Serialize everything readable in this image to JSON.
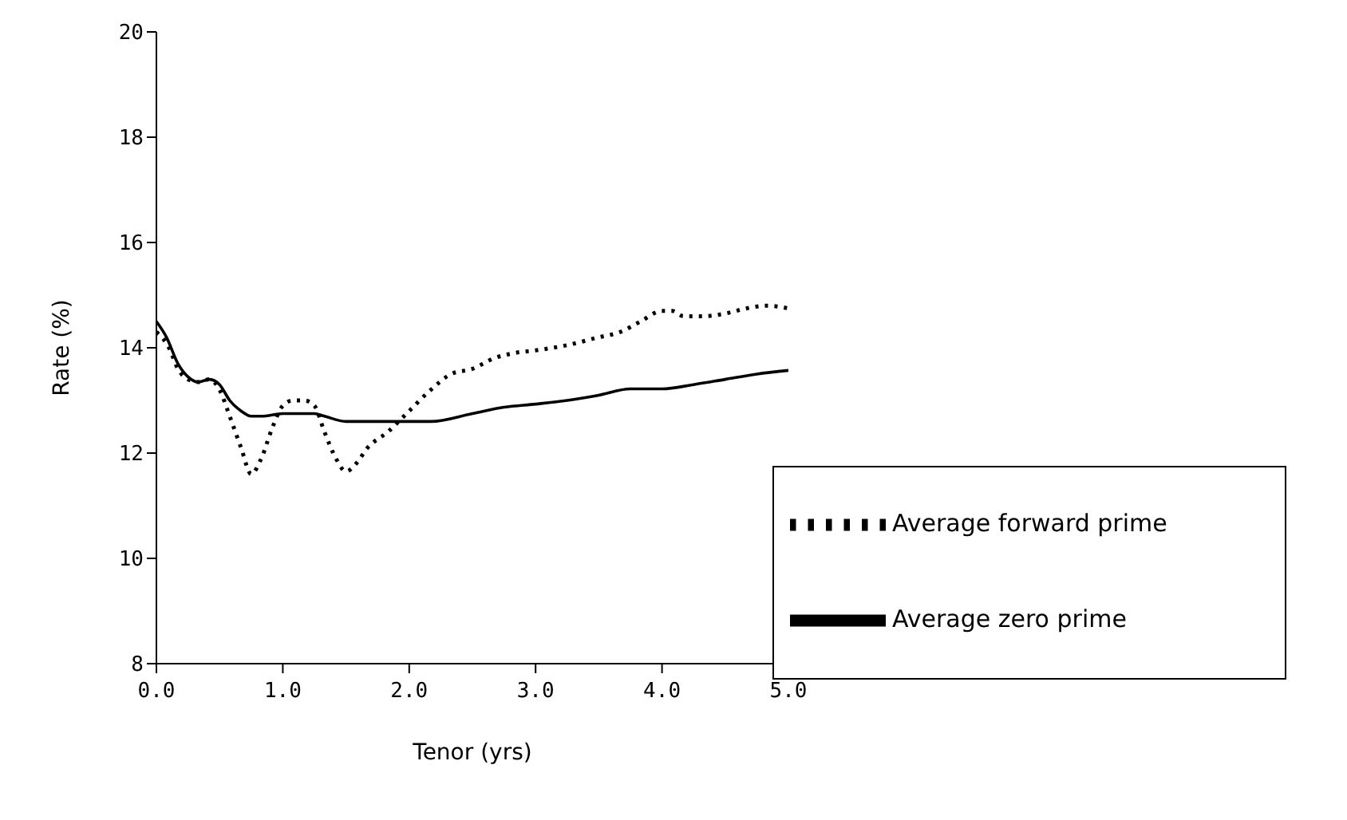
{
  "chart_data": {
    "type": "line",
    "xlabel": "Tenor (yrs)",
    "ylabel": "Rate (%)",
    "xlim": [
      0,
      5
    ],
    "xticks": [
      {
        "value": 0,
        "label": "0.0"
      },
      {
        "value": 1,
        "label": "1.0"
      },
      {
        "value": 2,
        "label": "2.0"
      },
      {
        "value": 3,
        "label": "3.0"
      },
      {
        "value": 4,
        "label": "4.0"
      },
      {
        "value": 5,
        "label": "5.0"
      }
    ],
    "ylim": [
      8,
      20
    ],
    "yticks": [
      8,
      10,
      12,
      14,
      16,
      18,
      20
    ],
    "grid": false,
    "legend": "bottom right",
    "marker": "none",
    "series": [
      {
        "name": "Average forward prime",
        "color": "#000000",
        "line_style": "dotted",
        "x": [
          0,
          0.1,
          0.17,
          0.25,
          0.33,
          0.42,
          0.5,
          0.58,
          0.67,
          0.75,
          0.83,
          0.92,
          1.0,
          1.08,
          1.17,
          1.25,
          1.33,
          1.42,
          1.5,
          1.58,
          1.67,
          1.83,
          2.0,
          2.17,
          2.33,
          2.5,
          2.67,
          2.83,
          3.0,
          3.25,
          3.5,
          3.67,
          3.83,
          4.0,
          4.08,
          4.17,
          4.33,
          4.5,
          4.67,
          4.83,
          5.0
        ],
        "values": [
          14.3,
          14.0,
          13.6,
          13.4,
          13.35,
          13.4,
          13.2,
          12.7,
          12.1,
          11.6,
          11.9,
          12.5,
          12.9,
          13.0,
          13.0,
          12.9,
          12.4,
          11.9,
          11.65,
          11.8,
          12.1,
          12.4,
          12.8,
          13.2,
          13.5,
          13.6,
          13.8,
          13.9,
          13.95,
          14.05,
          14.2,
          14.3,
          14.5,
          14.7,
          14.7,
          14.6,
          14.6,
          14.65,
          14.75,
          14.8,
          14.75
        ]
      },
      {
        "name": "Average zero prime",
        "color": "#000000",
        "line_style": "solid",
        "x": [
          0,
          0.08,
          0.17,
          0.25,
          0.33,
          0.42,
          0.5,
          0.58,
          0.67,
          0.75,
          0.83,
          1.0,
          1.25,
          1.33,
          1.5,
          2.0,
          2.17,
          2.5,
          2.75,
          3.0,
          3.25,
          3.5,
          3.75,
          4.0,
          4.25,
          4.5,
          4.75,
          5.0
        ],
        "values": [
          14.5,
          14.2,
          13.7,
          13.45,
          13.35,
          13.4,
          13.3,
          13.0,
          12.8,
          12.7,
          12.7,
          12.75,
          12.75,
          12.7,
          12.6,
          12.6,
          12.6,
          12.75,
          12.87,
          12.93,
          13.0,
          13.1,
          13.22,
          13.22,
          13.3,
          13.4,
          13.5,
          13.57
        ]
      }
    ]
  }
}
